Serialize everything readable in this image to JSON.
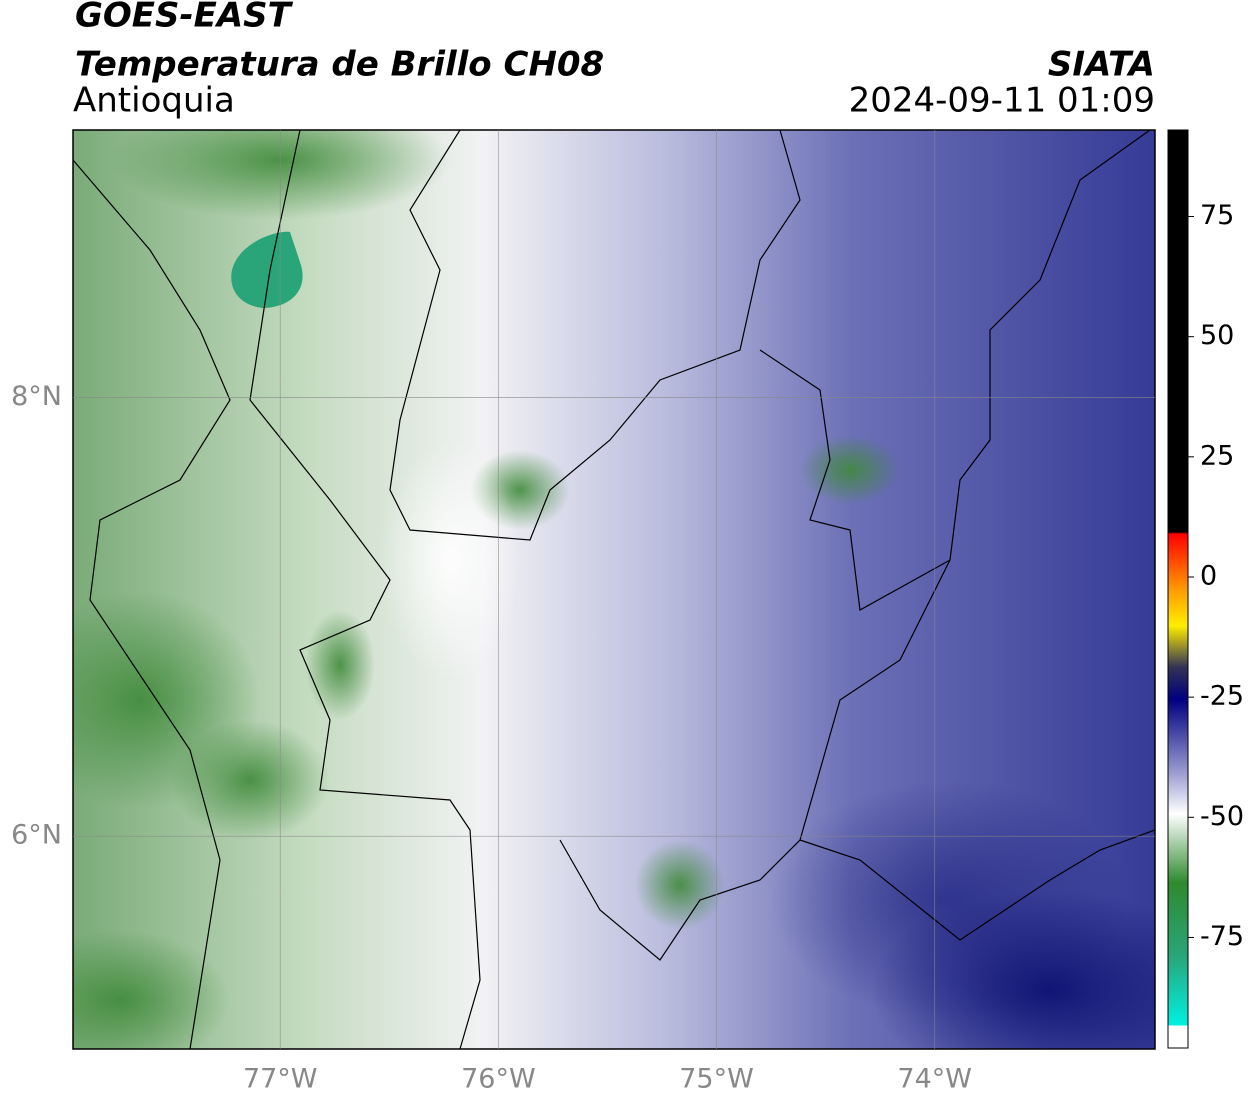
{
  "header": {
    "title": "GOES-EAST",
    "subtitle": "Temperatura de Brillo CH08",
    "region": "Antioquia",
    "source": "SIATA",
    "datetime": "2024-09-11 01:09"
  },
  "map": {
    "lonlim": [
      -77.95,
      -72.99
    ],
    "latlim": [
      5.03,
      9.22
    ],
    "lon_ticks": [
      {
        "value": -77,
        "label": "77°W"
      },
      {
        "value": -76,
        "label": "76°W"
      },
      {
        "value": -75,
        "label": "75°W"
      },
      {
        "value": -74,
        "label": "74°W"
      }
    ],
    "lat_ticks": [
      {
        "value": 8,
        "label": "8°N"
      },
      {
        "value": 6,
        "label": "6°N"
      }
    ]
  },
  "colorbar": {
    "lim": [
      -98,
      93
    ],
    "ticks": [
      75,
      50,
      25,
      0,
      -25,
      -50,
      -75
    ]
  }
}
